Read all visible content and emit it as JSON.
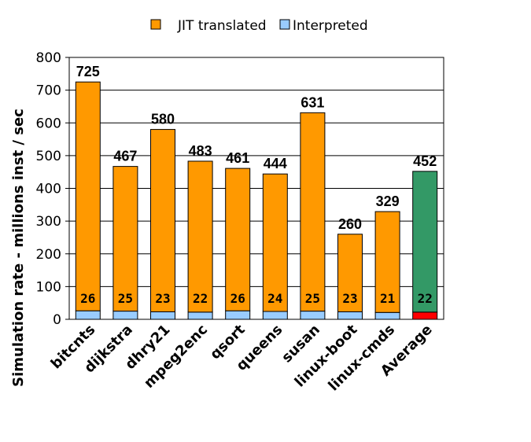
{
  "chart_data": {
    "type": "bar",
    "stacked": true,
    "categories": [
      "bitcnts",
      "dijkstra",
      "dhry21",
      "mpeg2enc",
      "qsort",
      "queens",
      "susan",
      "linux-boot",
      "linux-cmds",
      "Average"
    ],
    "totals": [
      725,
      467,
      580,
      483,
      461,
      444,
      631,
      260,
      329,
      452
    ],
    "series": [
      {
        "name": "Interpreted",
        "values": [
          26,
          25,
          23,
          22,
          26,
          24,
          25,
          23,
          21,
          22
        ]
      },
      {
        "name": "JIT translated",
        "values": [
          699,
          442,
          557,
          461,
          435,
          420,
          606,
          237,
          308,
          430
        ]
      }
    ],
    "total_labels": [
      "725",
      "467",
      "580",
      "483",
      "461",
      "444",
      "631",
      "260",
      "329",
      "452"
    ],
    "interpreted_labels": [
      "26",
      "25",
      "23",
      "22",
      "26",
      "24",
      "25",
      "23",
      "21",
      "22"
    ],
    "ylabel": "Simulation rate - millions inst / sec",
    "ylim": [
      0,
      800
    ],
    "yticks": [
      "0",
      "100",
      "200",
      "300",
      "400",
      "500",
      "600",
      "700",
      "800"
    ],
    "grid": true,
    "legend_position": "top",
    "colors": {
      "jit": "#ff9900",
      "interpreted": "#99ccff",
      "average_top": "#339966",
      "average_bottom": "#ff0000"
    }
  }
}
